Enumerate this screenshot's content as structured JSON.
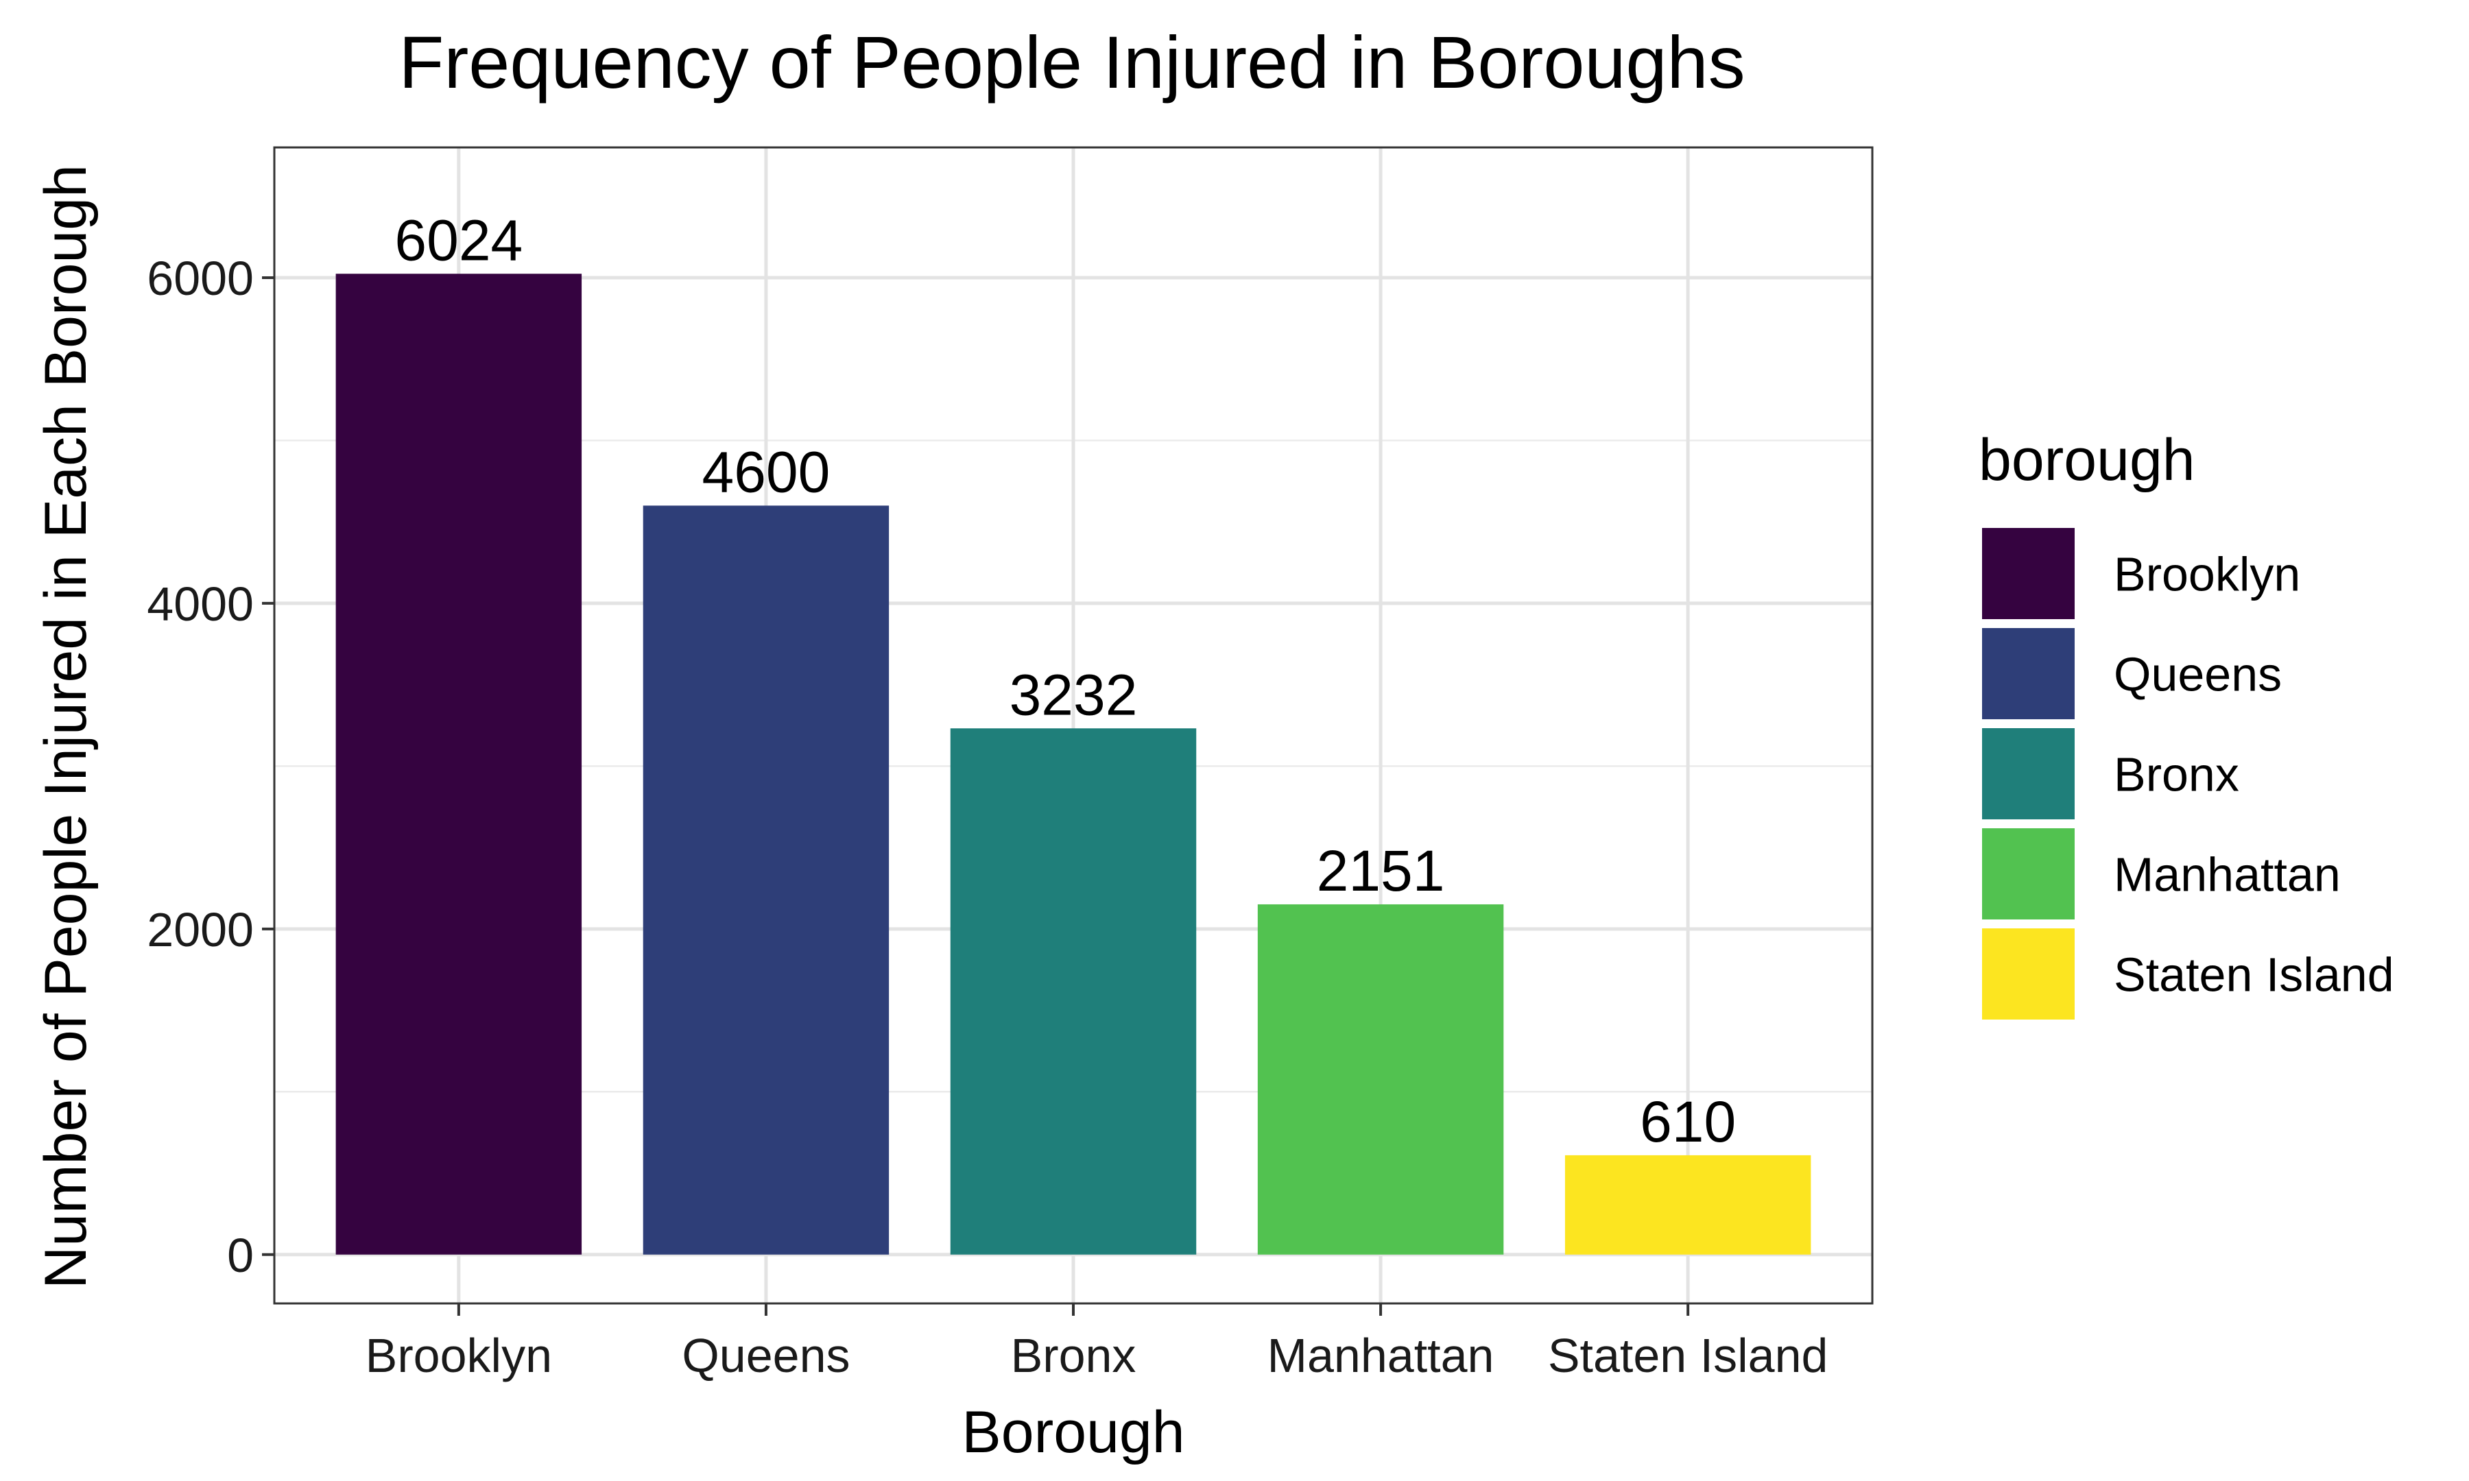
{
  "chart_data": {
    "type": "bar",
    "title": "Frequency of People Injured in Boroughs",
    "xlabel": "Borough",
    "ylabel": "Number of People Injured in Each Borough",
    "categories": [
      "Brooklyn",
      "Queens",
      "Bronx",
      "Manhattan",
      "Staten Island"
    ],
    "values": [
      6024,
      4600,
      3232,
      2151,
      610
    ],
    "data_labels": [
      "6024",
      "4600",
      "3232",
      "2151",
      "610"
    ],
    "colors": [
      "#350340",
      "#2E3E78",
      "#1F7F7A",
      "#52C250",
      "#FCE520"
    ],
    "ylim": [
      -300,
      6800
    ],
    "yticks": [
      0,
      2000,
      4000,
      6000
    ],
    "ytick_labels": [
      "0",
      "2000",
      "4000",
      "6000"
    ],
    "grid": true,
    "legend": {
      "title": "borough",
      "placement": "right",
      "entries": [
        "Brooklyn",
        "Queens",
        "Bronx",
        "Manhattan",
        "Staten Island"
      ]
    }
  }
}
